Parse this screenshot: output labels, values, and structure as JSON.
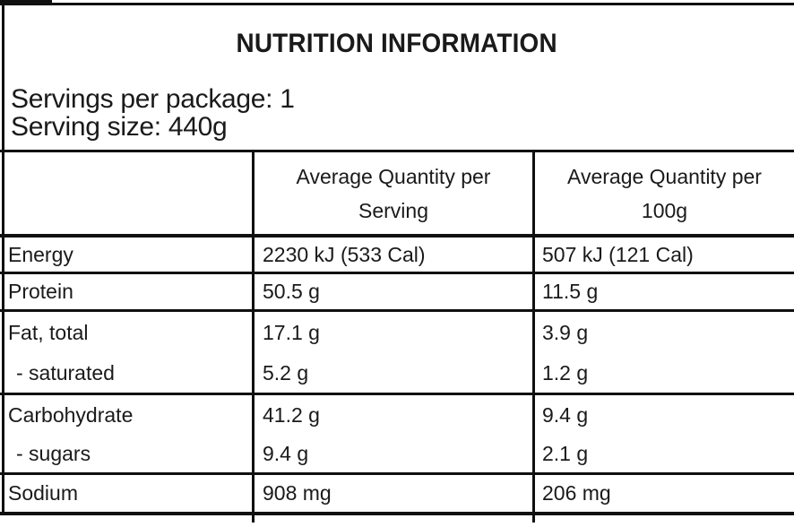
{
  "label": {
    "title": "NUTRITION INFORMATION",
    "servings_per_package": "Servings per package: 1",
    "serving_size": "Serving size: 440g"
  },
  "table": {
    "header": {
      "nutrient_col": "",
      "per_serving_col": "Average Quantity per Serving",
      "per_100g_col": "Average Quantity per 100g"
    },
    "rows": [
      {
        "name": "Energy",
        "per_serving": "2230 kJ (533 Cal)",
        "per_100g": "507 kJ (121 Cal)"
      },
      {
        "name": "Protein",
        "per_serving": "50.5 g",
        "per_100g": "11.5 g"
      },
      {
        "name": "Fat, total",
        "per_serving": "17.1 g",
        "per_100g": "3.9 g"
      },
      {
        "name": "- saturated",
        "per_serving": "5.2 g",
        "per_100g": "1.2 g"
      },
      {
        "name": "Carbohydrate",
        "per_serving": "41.2 g",
        "per_100g": "9.4 g"
      },
      {
        "name": "- sugars",
        "per_serving": "9.4 g",
        "per_100g": "2.1 g"
      },
      {
        "name": "Sodium",
        "per_serving": "908 mg",
        "per_100g": "206 mg"
      }
    ]
  },
  "colors": {
    "text": "#1a1a1a",
    "border": "#101010",
    "background": "#ffffff"
  }
}
